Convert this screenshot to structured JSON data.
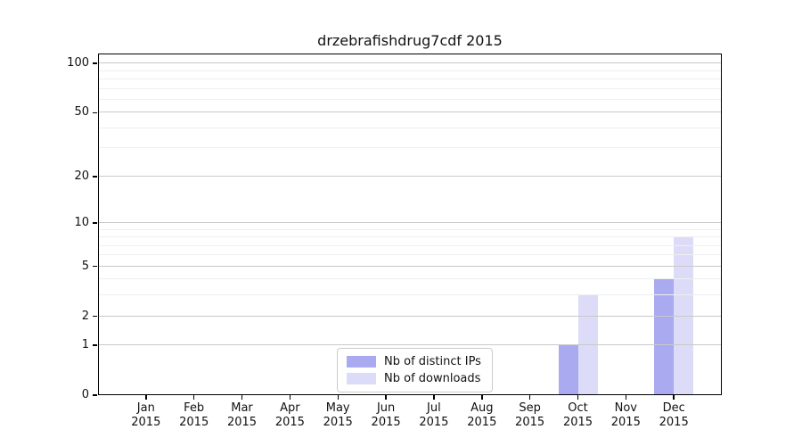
{
  "title": "drzebrafishdrug7cdf 2015",
  "colors": {
    "background": "#ffffff",
    "spine": "#000000",
    "grid_major": "#c9c9c9",
    "grid_minor": "#efefef",
    "text": "#111111",
    "series_ips": "#aaaaf0",
    "series_downloads": "#dcdcf8"
  },
  "legend": {
    "items": [
      {
        "label": "Nb of distinct IPs",
        "color": "#aaaaf0"
      },
      {
        "label": "Nb of downloads",
        "color": "#dcdcf8"
      }
    ]
  },
  "chart_data": {
    "type": "bar",
    "title": "drzebrafishdrug7cdf 2015",
    "categories": [
      "Jan 2015",
      "Feb 2015",
      "Mar 2015",
      "Apr 2015",
      "May 2015",
      "Jun 2015",
      "Jul 2015",
      "Aug 2015",
      "Sep 2015",
      "Oct 2015",
      "Nov 2015",
      "Dec 2015"
    ],
    "series": [
      {
        "name": "Nb of distinct IPs",
        "color": "#aaaaf0",
        "values": [
          0,
          0,
          0,
          0,
          0,
          0,
          0,
          0,
          0,
          1,
          0,
          4
        ]
      },
      {
        "name": "Nb of downloads",
        "color": "#dcdcf8",
        "values": [
          0,
          0,
          0,
          0,
          0,
          0,
          0,
          0,
          0,
          3,
          0,
          8
        ]
      }
    ],
    "xlabel": "",
    "ylabel": "",
    "yscale": "log1p",
    "ylim": [
      0,
      115
    ],
    "yticks": [
      0,
      1,
      2,
      5,
      10,
      20,
      50,
      100
    ],
    "yticks_minor": [
      3,
      4,
      6,
      7,
      8,
      9,
      30,
      40,
      60,
      70,
      80,
      90
    ],
    "grid": "horizontal major+minor, drawn above bars",
    "legend_position": "lower center"
  }
}
